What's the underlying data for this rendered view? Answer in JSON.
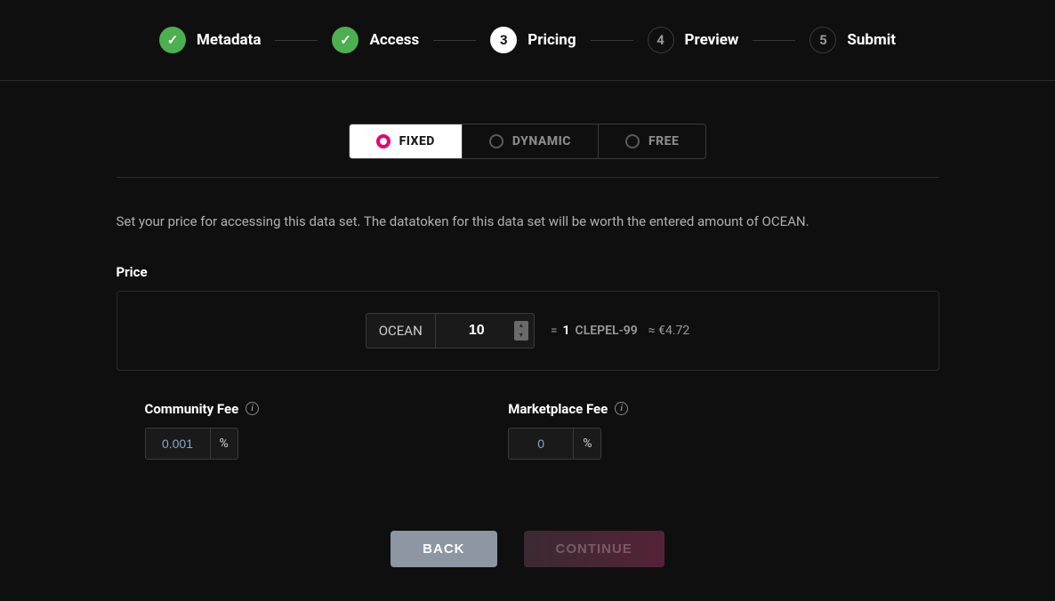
{
  "colors": {
    "background": "#0f0f0f",
    "text": "#ffffff",
    "muted": "#9a9a9a",
    "border": "#2a2a2a",
    "doneStep": "#4caf50",
    "accent": "#e6007a",
    "backBtn": "#8d96a3",
    "continueBtnStart": "#3a2a33",
    "continueBtnEnd": "#552238",
    "feeValue": "#8aa6c9"
  },
  "stepper": {
    "steps": [
      {
        "indicator": "✓",
        "label": "Metadata",
        "state": "done"
      },
      {
        "indicator": "✓",
        "label": "Access",
        "state": "done"
      },
      {
        "indicator": "3",
        "label": "Pricing",
        "state": "active"
      },
      {
        "indicator": "4",
        "label": "Preview",
        "state": "upcoming"
      },
      {
        "indicator": "5",
        "label": "Submit",
        "state": "upcoming"
      }
    ]
  },
  "tabs": {
    "fixed": "FIXED",
    "dynamic": "DYNAMIC",
    "free": "FREE"
  },
  "description": "Set your price for accessing this data set. The datatoken for this data set will be worth the entered amount of OCEAN.",
  "price": {
    "label": "Price",
    "currency": "OCEAN",
    "value": "10",
    "eq": "=",
    "qty": "1",
    "token": "CLEPEL-99",
    "approx": "≈ €4.72"
  },
  "fees": {
    "community": {
      "label": "Community Fee",
      "value": "0.001",
      "suffix": "%"
    },
    "marketplace": {
      "label": "Marketplace Fee",
      "value": "0",
      "suffix": "%"
    }
  },
  "actions": {
    "back": "BACK",
    "continue": "CONTINUE"
  }
}
